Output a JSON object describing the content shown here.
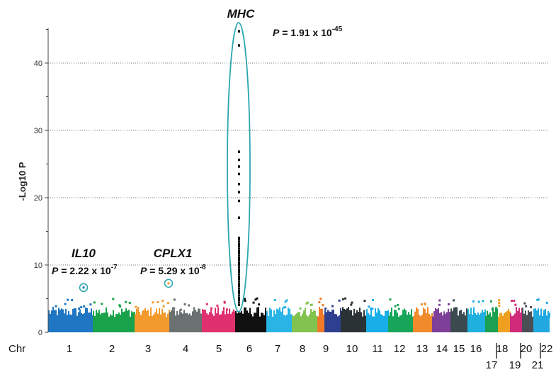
{
  "chart_data": {
    "type": "scatter",
    "title": "",
    "ylabel": "-Log10 P",
    "xlabel": "Chr",
    "ylim": [
      0,
      46
    ],
    "yticks": [
      0,
      10,
      20,
      30,
      40
    ],
    "grid": "horizontal dotted",
    "chromosomes": [
      {
        "label": "1",
        "color": "#1f77c4"
      },
      {
        "label": "2",
        "color": "#1aa24a"
      },
      {
        "label": "3",
        "color": "#f29a2e"
      },
      {
        "label": "4",
        "color": "#6b7070"
      },
      {
        "label": "5",
        "color": "#e0306e"
      },
      {
        "label": "6",
        "color": "#111111"
      },
      {
        "label": "7",
        "color": "#29b4e6"
      },
      {
        "label": "8",
        "color": "#82c350"
      },
      {
        "label": "9",
        "color": "#f07a2a"
      },
      {
        "label": "10",
        "color": "#2e3f8f"
      },
      {
        "label": "11",
        "color": "#2b3235"
      },
      {
        "label": "12",
        "color": "#19aee8"
      },
      {
        "label": "13",
        "color": "#17a55a"
      },
      {
        "label": "14",
        "color": "#f08a2a"
      },
      {
        "label": "15",
        "color": "#7e3f98"
      },
      {
        "label": "16",
        "color": "#3a4a4f"
      },
      {
        "label": "17",
        "color": "#20b0e0"
      },
      {
        "label": "18",
        "color": "#1aa050"
      },
      {
        "label": "19",
        "color": "#f0a020"
      },
      {
        "label": "20",
        "color": "#d02a7a"
      },
      {
        "label": "21",
        "color": "#4a4f55"
      },
      {
        "label": "22",
        "color": "#22a8e0"
      }
    ],
    "annotations": [
      {
        "gene": "MHC",
        "chr": "6",
        "p_prefix": "P",
        "p_text": " = 1.91 x 10",
        "p_exp": "-45",
        "neglog10p": 44.7
      },
      {
        "gene": "IL10",
        "chr": "1",
        "p_prefix": "P",
        "p_text": " = 2.22 x 10",
        "p_exp": "-7",
        "neglog10p": 6.65
      },
      {
        "gene": "CPLX1",
        "chr": "3",
        "p_prefix": "P",
        "p_text": " = 5.29 x 10",
        "p_exp": "-8",
        "neglog10p": 7.28
      }
    ],
    "mhc_points": [
      44.7,
      42.6,
      26.8,
      25.6,
      24.6,
      23.5,
      22.0,
      20.8,
      19.5,
      17.0,
      14.0,
      13.0,
      12.0,
      11.0,
      10.0,
      9.0,
      8.0,
      7.0,
      6.0,
      5.0
    ]
  }
}
